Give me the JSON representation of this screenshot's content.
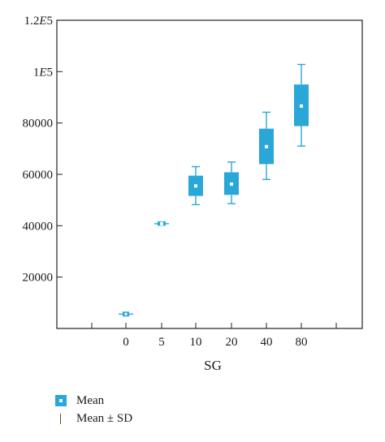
{
  "chart_data": {
    "type": "box",
    "xlabel": "SG",
    "ylabel": "",
    "ylim": [
      0,
      120000
    ],
    "yticks": [
      {
        "value": 20000,
        "label": "20000"
      },
      {
        "value": 40000,
        "label": "40000"
      },
      {
        "value": 60000,
        "label": "60000"
      },
      {
        "value": 80000,
        "label": "80000"
      },
      {
        "value": 100000,
        "label": "1E5"
      },
      {
        "value": 120000,
        "label": "1.2E5"
      }
    ],
    "categories": [
      "0",
      "5",
      "10",
      "20",
      "40",
      "80"
    ],
    "boxes": [
      {
        "category": "0",
        "whisker_low": 5600,
        "box_low": 5600,
        "mean": 5600,
        "box_high": 5600,
        "whisker_high": 5600
      },
      {
        "category": "5",
        "whisker_low": 40800,
        "box_low": 40000,
        "mean": 40800,
        "box_high": 41700,
        "whisker_high": 40800
      },
      {
        "category": "10",
        "whisker_low": 48200,
        "box_low": 51600,
        "mean": 55500,
        "box_high": 59500,
        "whisker_high": 63000
      },
      {
        "category": "20",
        "whisker_low": 48600,
        "box_low": 52000,
        "mean": 56200,
        "box_high": 60800,
        "whisker_high": 64800
      },
      {
        "category": "40",
        "whisker_low": 58000,
        "box_low": 64000,
        "mean": 70800,
        "box_high": 77800,
        "whisker_high": 84200
      },
      {
        "category": "80",
        "whisker_low": 71000,
        "box_low": 78800,
        "mean": 86600,
        "box_high": 95000,
        "whisker_high": 102800
      }
    ],
    "legend": {
      "placement": "bottom-left",
      "items": [
        "Mean",
        "Mean ± SD"
      ]
    },
    "colors": {
      "box": "#29a8d8",
      "whisker": "#29a8d8",
      "mean_marker": "#ffffff",
      "sd_legend": "#6b4a2b"
    },
    "grid": false
  }
}
